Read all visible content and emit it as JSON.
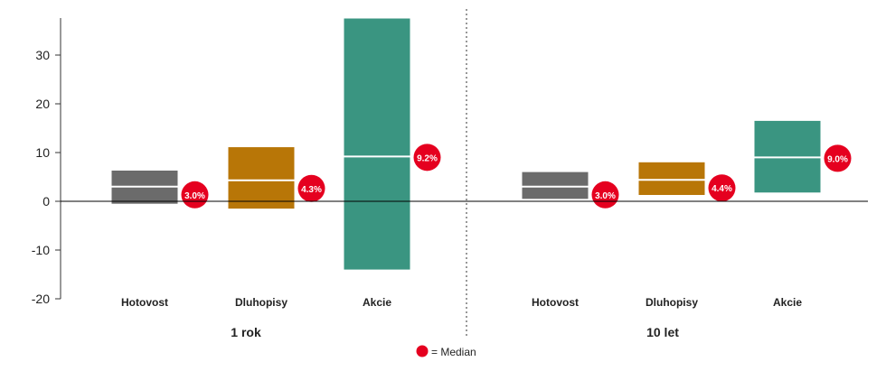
{
  "chart_data": {
    "type": "bar",
    "subtype": "floating-range",
    "ylim": [
      -20,
      38
    ],
    "yticks": [
      30,
      20,
      10,
      0,
      -10,
      -20
    ],
    "grid": false,
    "colors": {
      "Hotovost": "#6b6b6b",
      "Dluhopisy": "#b87607",
      "Akcie": "#3a9581",
      "median_badge": "#e5001f",
      "median_line": "#ffffff"
    },
    "groups": [
      {
        "label": "1 rok",
        "bars": [
          {
            "category": "Hotovost",
            "low": -0.5,
            "high": 6.3,
            "median": 3.0,
            "median_label": "3.0%"
          },
          {
            "category": "Dluhopisy",
            "low": -1.5,
            "high": 11.1,
            "median": 4.3,
            "median_label": "4.3%"
          },
          {
            "category": "Akcie",
            "low": -14.0,
            "high": 37.5,
            "median": 9.2,
            "median_label": "9.2%"
          }
        ]
      },
      {
        "label": "10 let",
        "bars": [
          {
            "category": "Hotovost",
            "low": 0.5,
            "high": 6.0,
            "median": 3.0,
            "median_label": "3.0%"
          },
          {
            "category": "Dluhopisy",
            "low": 1.3,
            "high": 8.0,
            "median": 4.4,
            "median_label": "4.4%"
          },
          {
            "category": "Akcie",
            "low": 1.8,
            "high": 16.5,
            "median": 9.0,
            "median_label": "9.0%"
          }
        ]
      }
    ],
    "legend": {
      "symbol": "red-circle",
      "label": "= Median",
      "placement": "bottom-center"
    }
  }
}
